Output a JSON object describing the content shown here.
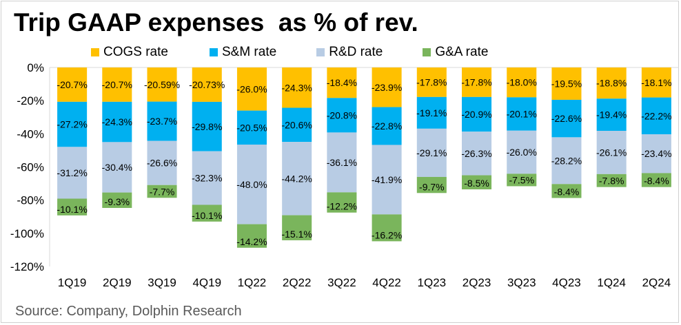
{
  "title": "Trip GAAP expenses  as % of rev.",
  "source": "Source: Company, Dolphin Research",
  "chart_data": {
    "type": "bar",
    "stacked": true,
    "categories": [
      "1Q19",
      "2Q19",
      "3Q19",
      "4Q19",
      "1Q22",
      "2Q22",
      "3Q22",
      "4Q22",
      "1Q23",
      "2Q23",
      "3Q23",
      "4Q23",
      "1Q24",
      "2Q24"
    ],
    "series": [
      {
        "name": "COGS rate",
        "color": "#FFC000",
        "values": [
          -20.7,
          -20.7,
          -20.59,
          -20.73,
          -26.0,
          -24.3,
          -18.4,
          -23.9,
          -17.8,
          -17.8,
          -18.0,
          -19.5,
          -18.8,
          -18.1
        ],
        "labels": [
          "-20.7%",
          "-20.7%",
          "-20.59%",
          "-20.73%",
          "-26.0%",
          "-24.3%",
          "-18.4%",
          "-23.9%",
          "-17.8%",
          "-17.8%",
          "-18.0%",
          "-19.5%",
          "-18.8%",
          "-18.1%"
        ]
      },
      {
        "name": "S&M rate",
        "color": "#00B0F0",
        "values": [
          -27.2,
          -24.3,
          -23.7,
          -29.8,
          -20.5,
          -20.6,
          -20.8,
          -22.8,
          -19.1,
          -20.9,
          -20.1,
          -22.6,
          -19.4,
          -22.2
        ],
        "labels": [
          "-27.2%",
          "-24.3%",
          "-23.7%",
          "-29.8%",
          "-20.5%",
          "-20.6%",
          "-20.8%",
          "-22.8%",
          "-19.1%",
          "-20.9%",
          "-20.1%",
          "-22.6%",
          "-19.4%",
          "-22.2%"
        ]
      },
      {
        "name": "R&D rate",
        "color": "#B8CCE4",
        "values": [
          -31.2,
          -30.4,
          -26.6,
          -32.3,
          -48.0,
          -44.2,
          -36.1,
          -41.9,
          -29.1,
          -26.3,
          -26.0,
          -28.2,
          -26.1,
          -23.4
        ],
        "labels": [
          "-31.2%",
          "-30.4%",
          "-26.6%",
          "-32.3%",
          "-48.0%",
          "-44.2%",
          "-36.1%",
          "-41.9%",
          "-29.1%",
          "-26.3%",
          "-26.0%",
          "-28.2%",
          "-26.1%",
          "-23.4%"
        ]
      },
      {
        "name": "G&A rate",
        "color": "#7AB55C",
        "values": [
          -10.1,
          -9.3,
          -7.7,
          -10.1,
          -14.2,
          -15.1,
          -12.2,
          -16.2,
          -9.7,
          -8.5,
          -7.5,
          -8.4,
          -7.8,
          -8.4
        ],
        "labels": [
          "-10.1%",
          "-9.3%",
          "-7.7%",
          "-10.1%",
          "-14.2%",
          "-15.1%",
          "-12.2%",
          "-16.2%",
          "-9.7%",
          "-8.5%",
          "-7.5%",
          "-8.4%",
          "-7.8%",
          "-8.4%"
        ]
      }
    ],
    "yticks": [
      0,
      -20,
      -40,
      -60,
      -80,
      -100,
      -120
    ],
    "ytick_labels": [
      "0%",
      "-20%",
      "-40%",
      "-60%",
      "-80%",
      "-100%",
      "-120%"
    ],
    "ylim": [
      -120,
      0
    ],
    "grid": false,
    "legend_position": "top",
    "legend_label_color": "#000000",
    "axis_line_color": "#D9D9D9",
    "text_color": "#000000"
  }
}
